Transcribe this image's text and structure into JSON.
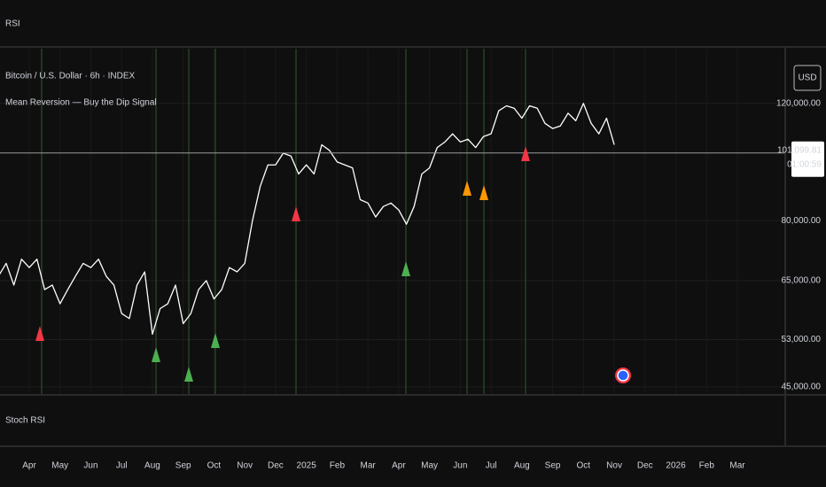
{
  "panes": [
    "RSI",
    "Stoch RSI"
  ],
  "chart_data": {
    "type": "line",
    "title": "Bitcoin / U.S. Dollar · 6h · INDEX",
    "subtitle": "Mean Reversion — Buy the Dip Signal",
    "currency": "USD",
    "categories": [
      null,
      null,
      null,
      null,
      "Apr",
      null,
      null,
      null,
      "May",
      null,
      null,
      null,
      "Jun",
      null,
      null,
      null,
      "Jul",
      null,
      null,
      null,
      "Aug",
      null,
      null,
      null,
      "Sep",
      null,
      null,
      null,
      "Oct",
      null,
      null,
      null,
      "Nov",
      null,
      null,
      null,
      "Dec",
      null,
      null,
      null,
      "2025",
      null,
      null,
      null,
      "Feb",
      null,
      null,
      null,
      "Mar",
      null,
      null,
      null,
      "Apr",
      null,
      null,
      null,
      "May",
      null,
      null,
      null,
      "Jun",
      null,
      null,
      null,
      "Jul",
      null,
      null,
      null,
      "Aug",
      null,
      null,
      null,
      "Sep",
      null,
      null,
      null,
      "Oct",
      null,
      null,
      null,
      "Nov",
      null,
      null,
      null,
      "Dec",
      null,
      null,
      null,
      "2026",
      null,
      null,
      null,
      "Feb",
      null,
      null,
      null,
      "Mar",
      null,
      null,
      null
    ],
    "values": [
      66000,
      69000,
      64000,
      70000,
      68000,
      70000,
      63000,
      64000,
      60000,
      63000,
      66000,
      69000,
      68000,
      70000,
      66000,
      64000,
      58000,
      57000,
      64000,
      67000,
      54000,
      59000,
      60000,
      64000,
      56000,
      58000,
      63000,
      65000,
      61000,
      63000,
      68000,
      67000,
      69000,
      80000,
      90000,
      97000,
      97000,
      101000,
      100000,
      94000,
      97000,
      94000,
      104000,
      102000,
      98000,
      97000,
      96000,
      86000,
      85000,
      81000,
      84000,
      85000,
      83000,
      79000,
      84000,
      94000,
      96000,
      103000,
      105000,
      108000,
      105000,
      106000,
      103000,
      107000,
      108000,
      117000,
      119000,
      118000,
      114000,
      119000,
      118000,
      112000,
      110000,
      111000,
      116000,
      113000,
      120000,
      112000,
      108000,
      114000,
      104000,
      null,
      null,
      null,
      null,
      null,
      null,
      null,
      null,
      null,
      null,
      null,
      null,
      null,
      null,
      null,
      null,
      null,
      null,
      null
    ],
    "color": "#ffffff",
    "log_scale": true,
    "grid": true,
    "ylim": [
      43900,
      145000
    ],
    "yticks": [
      {
        "value": 45000,
        "label": "45,000.00"
      },
      {
        "value": 53000,
        "label": "53,000.00"
      },
      {
        "value": 65000,
        "label": "65,000.00"
      },
      {
        "value": 80000,
        "label": "80,000.00"
      },
      {
        "value": 120000,
        "label": "120,000.00"
      }
    ],
    "last_price": {
      "value": 101099.81,
      "label": "101,099.81"
    },
    "countdown": "01:00:59"
  }
}
